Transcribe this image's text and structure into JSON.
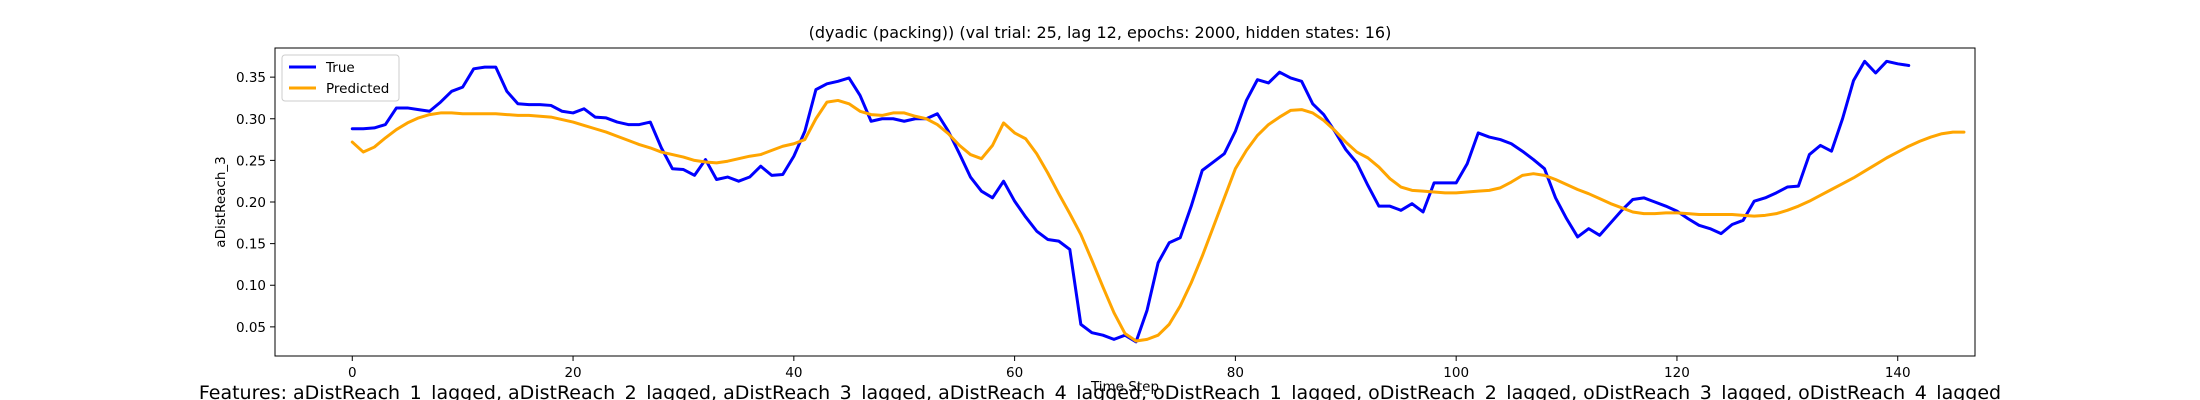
{
  "chart_data": {
    "type": "line",
    "title": "(dyadic (packing)) (val trial: 25, lag 12, epochs: 2000, hidden states: 16)",
    "xlabel": "Time Step",
    "ylabel": "aDistReach_3",
    "footer": "Features: aDistReach_1_lagged, aDistReach_2_lagged, aDistReach_3_lagged, aDistReach_4_lagged, oDistReach_1_lagged, oDistReach_2_lagged, oDistReach_3_lagged, oDistReach_4_lagged",
    "xlim": [
      -7,
      147
    ],
    "ylim": [
      0.015,
      0.385
    ],
    "xticks": [
      0,
      20,
      40,
      60,
      80,
      100,
      120,
      140
    ],
    "yticks": [
      0.05,
      0.1,
      0.15,
      0.2,
      0.25,
      0.3,
      0.35
    ],
    "ytick_labels": [
      "0.05",
      "0.10",
      "0.15",
      "0.20",
      "0.25",
      "0.30",
      "0.35"
    ],
    "legend_position": "top-left",
    "series": [
      {
        "name": "True",
        "color": "#0000ff",
        "values": [
          0.288,
          0.288,
          0.289,
          0.293,
          0.313,
          0.313,
          0.311,
          0.309,
          0.32,
          0.333,
          0.338,
          0.36,
          0.362,
          0.362,
          0.333,
          0.318,
          0.317,
          0.317,
          0.316,
          0.309,
          0.307,
          0.312,
          0.302,
          0.301,
          0.296,
          0.293,
          0.293,
          0.296,
          0.265,
          0.24,
          0.239,
          0.232,
          0.251,
          0.227,
          0.23,
          0.225,
          0.23,
          0.243,
          0.232,
          0.233,
          0.255,
          0.285,
          0.335,
          0.342,
          0.345,
          0.349,
          0.328,
          0.297,
          0.3,
          0.3,
          0.297,
          0.3,
          0.3,
          0.306,
          0.285,
          0.258,
          0.23,
          0.213,
          0.205,
          0.225,
          0.201,
          0.182,
          0.165,
          0.155,
          0.153,
          0.143,
          0.053,
          0.043,
          0.04,
          0.035,
          0.04,
          0.032,
          0.07,
          0.127,
          0.151,
          0.157,
          0.195,
          0.238,
          0.248,
          0.258,
          0.285,
          0.322,
          0.347,
          0.343,
          0.356,
          0.349,
          0.345,
          0.318,
          0.305,
          0.285,
          0.263,
          0.247,
          0.22,
          0.195,
          0.195,
          0.19,
          0.198,
          0.188,
          0.223,
          0.223,
          0.223,
          0.246,
          0.283,
          0.278,
          0.275,
          0.27,
          0.261,
          0.251,
          0.24,
          0.205,
          0.18,
          0.158,
          0.168,
          0.16,
          0.175,
          0.19,
          0.203,
          0.205,
          0.2,
          0.195,
          0.189,
          0.18,
          0.172,
          0.168,
          0.162,
          0.173,
          0.178,
          0.201,
          0.205,
          0.211,
          0.218,
          0.219,
          0.257,
          0.268,
          0.261,
          0.3,
          0.346,
          0.369,
          0.355,
          0.369,
          0.366,
          0.364
        ]
      },
      {
        "name": "Predicted",
        "color": "#ffa500",
        "values": [
          0.272,
          0.26,
          0.266,
          0.277,
          0.287,
          0.295,
          0.301,
          0.305,
          0.307,
          0.307,
          0.306,
          0.306,
          0.306,
          0.306,
          0.305,
          0.304,
          0.304,
          0.303,
          0.302,
          0.299,
          0.296,
          0.292,
          0.288,
          0.284,
          0.279,
          0.274,
          0.269,
          0.265,
          0.26,
          0.257,
          0.254,
          0.25,
          0.248,
          0.247,
          0.249,
          0.252,
          0.255,
          0.257,
          0.262,
          0.267,
          0.27,
          0.275,
          0.3,
          0.32,
          0.322,
          0.318,
          0.309,
          0.305,
          0.304,
          0.307,
          0.307,
          0.303,
          0.3,
          0.293,
          0.282,
          0.268,
          0.257,
          0.252,
          0.268,
          0.295,
          0.283,
          0.276,
          0.258,
          0.235,
          0.21,
          0.186,
          0.161,
          0.13,
          0.098,
          0.067,
          0.042,
          0.033,
          0.035,
          0.04,
          0.053,
          0.075,
          0.103,
          0.135,
          0.17,
          0.205,
          0.24,
          0.262,
          0.28,
          0.293,
          0.302,
          0.31,
          0.311,
          0.307,
          0.298,
          0.286,
          0.272,
          0.26,
          0.253,
          0.242,
          0.228,
          0.218,
          0.214,
          0.213,
          0.212,
          0.211,
          0.211,
          0.212,
          0.213,
          0.214,
          0.217,
          0.224,
          0.232,
          0.234,
          0.232,
          0.227,
          0.221,
          0.215,
          0.21,
          0.204,
          0.198,
          0.193,
          0.188,
          0.186,
          0.186,
          0.187,
          0.187,
          0.186,
          0.185,
          0.185,
          0.185,
          0.185,
          0.184,
          0.183,
          0.184,
          0.186,
          0.19,
          0.195,
          0.201,
          0.208,
          0.215,
          0.222,
          0.229,
          0.237,
          0.245,
          0.253,
          0.26,
          0.267,
          0.273,
          0.278,
          0.282,
          0.284,
          0.284
        ]
      }
    ]
  }
}
